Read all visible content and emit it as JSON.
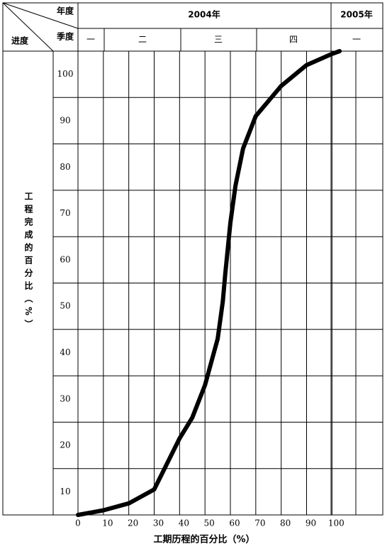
{
  "header": {
    "year_label": "年度",
    "quarter_label": "季度",
    "progress_label": "进度",
    "years": [
      "2004年",
      "2005年"
    ],
    "quarters": [
      "一",
      "二",
      "三",
      "四",
      "一"
    ]
  },
  "chart_data": {
    "type": "line",
    "y_label": "工程完成的百分比（%）",
    "x_label": "工期历程的百分比（%）",
    "x": [
      0,
      10,
      20,
      30,
      40,
      45,
      50,
      55,
      57,
      58,
      60,
      62,
      65,
      70,
      80,
      90,
      100,
      103
    ],
    "values": [
      0,
      1,
      2.5,
      5.5,
      16.5,
      21,
      28,
      38,
      46,
      52,
      63,
      71,
      79,
      86,
      92.5,
      97,
      99.4,
      100
    ],
    "color": "#000000",
    "xlim": [
      0,
      120
    ],
    "xticks": [
      0,
      10,
      20,
      30,
      40,
      50,
      60,
      70,
      80,
      90,
      100
    ],
    "ylim": [
      0,
      100
    ],
    "yticks": [
      10,
      20,
      30,
      40,
      50,
      60,
      70,
      80,
      90,
      100
    ],
    "grid": true
  }
}
